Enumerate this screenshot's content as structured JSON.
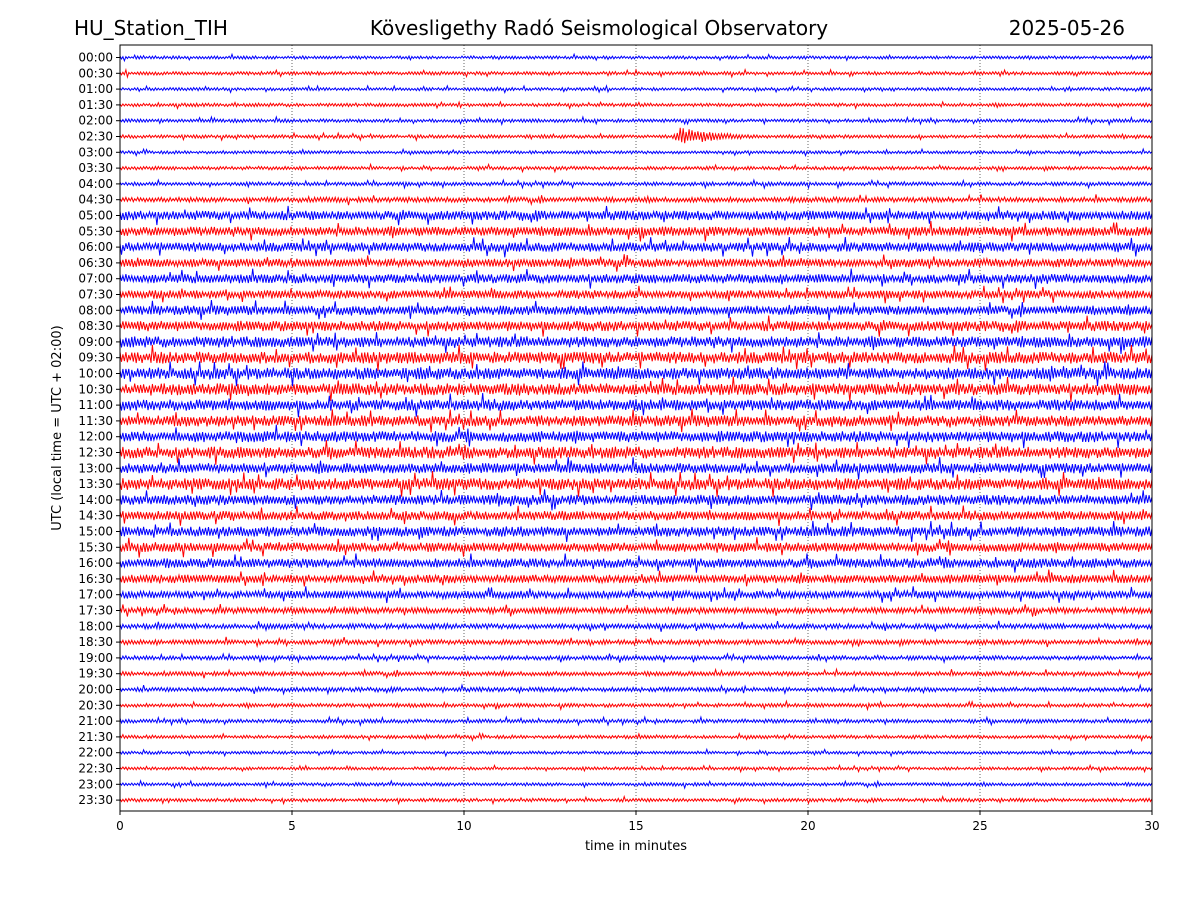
{
  "header": {
    "station": "HU_Station_TIH",
    "observatory": "Kövesligethy Radó Seismological Observatory",
    "date": "2025-05-26"
  },
  "chart_data": {
    "type": "line",
    "subtype": "helicorder",
    "xlabel": "time in minutes",
    "ylabel": "UTC (local time = UTC + 02:00)",
    "xlim": [
      0,
      30
    ],
    "x_ticks": [
      "0",
      "5",
      "10",
      "15",
      "20",
      "25",
      "30"
    ],
    "grid": "vertical dotted at each x tick",
    "row_colors": [
      "#0000ff",
      "#ff0000"
    ],
    "rows": [
      {
        "label": "00:00",
        "amplitude": 0.18
      },
      {
        "label": "00:30",
        "amplitude": 0.2
      },
      {
        "label": "01:00",
        "amplitude": 0.18
      },
      {
        "label": "01:30",
        "amplitude": 0.2
      },
      {
        "label": "02:00",
        "amplitude": 0.2
      },
      {
        "label": "02:30",
        "amplitude": 0.2,
        "events": [
          {
            "start_min": 16.0,
            "end_min": 19.0,
            "amp": 1.1
          }
        ]
      },
      {
        "label": "03:00",
        "amplitude": 0.18
      },
      {
        "label": "03:30",
        "amplitude": 0.2
      },
      {
        "label": "04:00",
        "amplitude": 0.22
      },
      {
        "label": "04:30",
        "amplitude": 0.3
      },
      {
        "label": "05:00",
        "amplitude": 0.55
      },
      {
        "label": "05:30",
        "amplitude": 0.55
      },
      {
        "label": "06:00",
        "amplitude": 0.55
      },
      {
        "label": "06:30",
        "amplitude": 0.5
      },
      {
        "label": "07:00",
        "amplitude": 0.55
      },
      {
        "label": "07:30",
        "amplitude": 0.5
      },
      {
        "label": "08:00",
        "amplitude": 0.55
      },
      {
        "label": "08:30",
        "amplitude": 0.6
      },
      {
        "label": "09:00",
        "amplitude": 0.65
      },
      {
        "label": "09:30",
        "amplitude": 0.7
      },
      {
        "label": "10:00",
        "amplitude": 0.7
      },
      {
        "label": "10:30",
        "amplitude": 0.7
      },
      {
        "label": "11:00",
        "amplitude": 0.65
      },
      {
        "label": "11:30",
        "amplitude": 0.65
      },
      {
        "label": "12:00",
        "amplitude": 0.65
      },
      {
        "label": "12:30",
        "amplitude": 0.7
      },
      {
        "label": "13:00",
        "amplitude": 0.6
      },
      {
        "label": "13:30",
        "amplitude": 0.7
      },
      {
        "label": "14:00",
        "amplitude": 0.6
      },
      {
        "label": "14:30",
        "amplitude": 0.55
      },
      {
        "label": "15:00",
        "amplitude": 0.6
      },
      {
        "label": "15:30",
        "amplitude": 0.55
      },
      {
        "label": "16:00",
        "amplitude": 0.55
      },
      {
        "label": "16:30",
        "amplitude": 0.5
      },
      {
        "label": "17:00",
        "amplitude": 0.45
      },
      {
        "label": "17:30",
        "amplitude": 0.35
      },
      {
        "label": "18:00",
        "amplitude": 0.3
      },
      {
        "label": "18:30",
        "amplitude": 0.28
      },
      {
        "label": "19:00",
        "amplitude": 0.25
      },
      {
        "label": "19:30",
        "amplitude": 0.25
      },
      {
        "label": "20:00",
        "amplitude": 0.25
      },
      {
        "label": "20:30",
        "amplitude": 0.22
      },
      {
        "label": "21:00",
        "amplitude": 0.22
      },
      {
        "label": "21:30",
        "amplitude": 0.2
      },
      {
        "label": "22:00",
        "amplitude": 0.18
      },
      {
        "label": "22:30",
        "amplitude": 0.18
      },
      {
        "label": "23:00",
        "amplitude": 0.2
      },
      {
        "label": "23:30",
        "amplitude": 0.2
      }
    ]
  }
}
